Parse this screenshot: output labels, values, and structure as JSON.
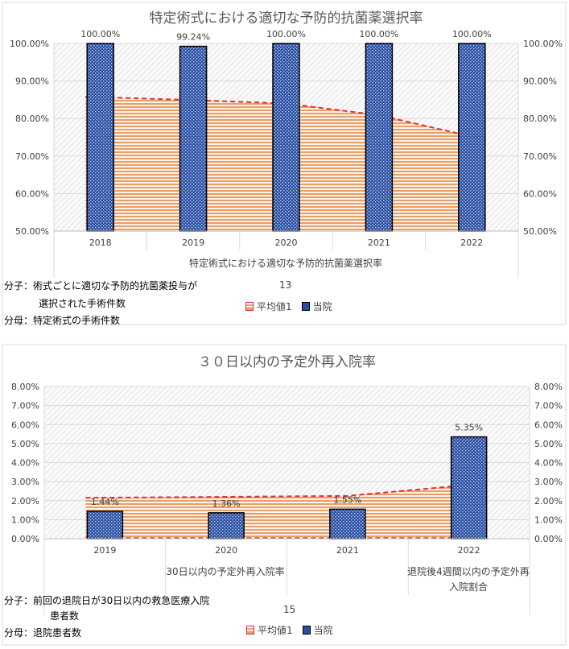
{
  "charts": [
    {
      "title": "特定術式における適切な予防的抗菌薬選択率",
      "num": "13",
      "numerator_line1": "分子：術式ごとに適切な予防的抗菌薬投与が",
      "numerator_line2": "選択された手術件数",
      "denominator": "分母：特定術式の手術件数",
      "legend_avg": "平均値1",
      "legend_bar": "当院",
      "category_subtitle": "特定術式における適切な予防的抗菌薬選択率"
    },
    {
      "title": "３０日以内の予定外再入院率",
      "num": "15",
      "numerator_line1": "分子：前回の退院日が30日以内の救急医療入院",
      "numerator_line2": "患者数",
      "denominator": "分母：退院患者数",
      "legend_avg": "平均値1",
      "legend_bar": "当院",
      "category_subtitle": "30日以内の予定外再入院率",
      "category_subtitle2_line1": "退院後4週間以内の予定外再",
      "category_subtitle2_line2": "入院割合"
    }
  ],
  "chart_data": [
    {
      "type": "bar",
      "title": "特定術式における適切な予防的抗菌薬選択率",
      "categories": [
        "2018",
        "2019",
        "2020",
        "2021",
        "2022"
      ],
      "series": [
        {
          "name": "当院",
          "values": [
            100.0,
            99.24,
            100.0,
            100.0,
            100.0
          ],
          "labels": [
            "100.00%",
            "99.24%",
            "100.00%",
            "100.00%",
            "100.00%"
          ]
        },
        {
          "name": "平均値1",
          "values": [
            85.8,
            84.9,
            84.0,
            80.9,
            75.9
          ]
        }
      ],
      "ylim": [
        50,
        100
      ],
      "yticks": [
        "50.00%",
        "60.00%",
        "70.00%",
        "80.00%",
        "90.00%",
        "100.00%"
      ],
      "legend_position": "bottom",
      "colors": {
        "bar": "#2b4fa0",
        "avg_line": "#e03030",
        "avg_area": "#e9a070"
      }
    },
    {
      "type": "bar",
      "title": "３０日以内の予定外再入院率",
      "categories": [
        "2019",
        "2020",
        "2021",
        "2022"
      ],
      "series": [
        {
          "name": "当院",
          "values": [
            1.44,
            1.36,
            1.55,
            5.35
          ],
          "labels": [
            "1.44%",
            "1.36%",
            "1.55%",
            "5.35%"
          ]
        },
        {
          "name": "平均値1",
          "values": [
            2.15,
            2.2,
            2.25,
            2.75
          ]
        }
      ],
      "ylim": [
        0,
        8
      ],
      "yticks": [
        "0.00%",
        "1.00%",
        "2.00%",
        "3.00%",
        "4.00%",
        "5.00%",
        "6.00%",
        "7.00%",
        "8.00%"
      ],
      "legend_position": "bottom",
      "colors": {
        "bar": "#2b4fa0",
        "avg_line": "#e03030",
        "avg_area": "#e9a070"
      }
    }
  ]
}
